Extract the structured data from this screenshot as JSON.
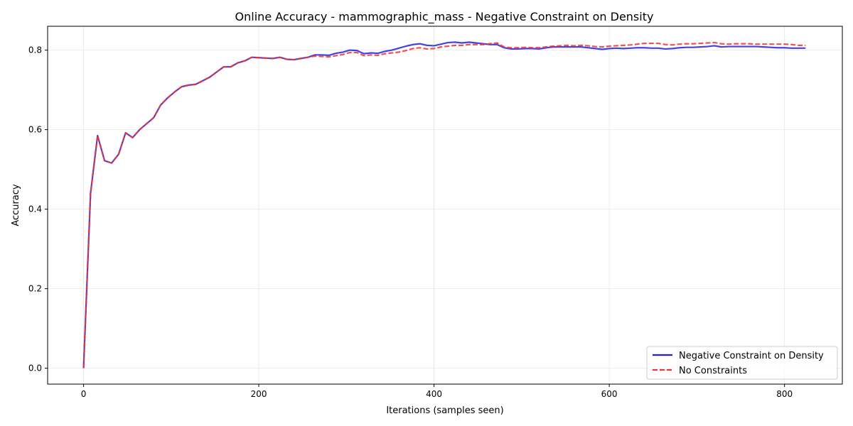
{
  "chart_data": {
    "type": "line",
    "title": "Online Accuracy - mammographic_mass - Negative Constraint on Density",
    "xlabel": "Iterations (samples seen)",
    "ylabel": "Accuracy",
    "xlim": [
      -41,
      866
    ],
    "ylim": [
      -0.04,
      0.86
    ],
    "xticks": [
      0,
      200,
      400,
      600,
      800
    ],
    "xtick_labels": [
      "0",
      "200",
      "400",
      "600",
      "800"
    ],
    "yticks": [
      0.0,
      0.2,
      0.4,
      0.6,
      0.8
    ],
    "ytick_labels": [
      "0.0",
      "0.2",
      "0.4",
      "0.6",
      "0.8"
    ],
    "grid": true,
    "legend_position": "bottom-right",
    "x": [
      0,
      8,
      16,
      24,
      32,
      40,
      48,
      56,
      64,
      72,
      80,
      88,
      96,
      104,
      112,
      120,
      128,
      136,
      144,
      152,
      160,
      168,
      176,
      184,
      192,
      200,
      208,
      216,
      224,
      232,
      240,
      248,
      256,
      264,
      272,
      280,
      288,
      296,
      304,
      312,
      320,
      328,
      336,
      344,
      352,
      360,
      368,
      376,
      384,
      392,
      400,
      408,
      416,
      424,
      432,
      440,
      448,
      456,
      464,
      472,
      480,
      488,
      496,
      504,
      512,
      520,
      528,
      536,
      544,
      552,
      560,
      568,
      576,
      584,
      592,
      600,
      608,
      616,
      624,
      632,
      640,
      648,
      656,
      664,
      672,
      680,
      688,
      696,
      704,
      712,
      720,
      728,
      736,
      744,
      752,
      760,
      768,
      776,
      784,
      792,
      800,
      808,
      816,
      824
    ],
    "series": [
      {
        "name": "Negative Constraint on Density",
        "color": "#2222dd",
        "style": "solid",
        "values": [
          0.0,
          0.44,
          0.585,
          0.522,
          0.516,
          0.538,
          0.592,
          0.58,
          0.6,
          0.615,
          0.63,
          0.662,
          0.68,
          0.695,
          0.708,
          0.712,
          0.714,
          0.723,
          0.732,
          0.745,
          0.758,
          0.758,
          0.768,
          0.773,
          0.782,
          0.781,
          0.78,
          0.779,
          0.782,
          0.777,
          0.776,
          0.779,
          0.782,
          0.788,
          0.788,
          0.787,
          0.792,
          0.795,
          0.8,
          0.799,
          0.791,
          0.793,
          0.792,
          0.797,
          0.8,
          0.805,
          0.81,
          0.814,
          0.816,
          0.812,
          0.811,
          0.815,
          0.819,
          0.82,
          0.818,
          0.82,
          0.818,
          0.816,
          0.814,
          0.814,
          0.806,
          0.803,
          0.803,
          0.804,
          0.804,
          0.803,
          0.806,
          0.808,
          0.808,
          0.808,
          0.808,
          0.808,
          0.806,
          0.804,
          0.802,
          0.804,
          0.805,
          0.804,
          0.805,
          0.806,
          0.806,
          0.805,
          0.805,
          0.803,
          0.804,
          0.806,
          0.807,
          0.807,
          0.808,
          0.809,
          0.811,
          0.808,
          0.809,
          0.809,
          0.809,
          0.809,
          0.809,
          0.808,
          0.807,
          0.806,
          0.806,
          0.805,
          0.805,
          0.805
        ]
      },
      {
        "name": "No Constraints",
        "color": "#ee3333",
        "style": "dashed",
        "values": [
          0.0,
          0.44,
          0.585,
          0.522,
          0.516,
          0.538,
          0.592,
          0.58,
          0.6,
          0.615,
          0.63,
          0.662,
          0.68,
          0.695,
          0.708,
          0.712,
          0.714,
          0.723,
          0.732,
          0.745,
          0.758,
          0.758,
          0.768,
          0.773,
          0.782,
          0.781,
          0.78,
          0.779,
          0.782,
          0.777,
          0.776,
          0.779,
          0.782,
          0.785,
          0.784,
          0.783,
          0.786,
          0.789,
          0.794,
          0.794,
          0.786,
          0.788,
          0.787,
          0.791,
          0.793,
          0.795,
          0.799,
          0.804,
          0.806,
          0.803,
          0.804,
          0.808,
          0.81,
          0.812,
          0.812,
          0.814,
          0.814,
          0.814,
          0.816,
          0.818,
          0.808,
          0.806,
          0.806,
          0.807,
          0.806,
          0.806,
          0.808,
          0.81,
          0.811,
          0.812,
          0.811,
          0.812,
          0.811,
          0.809,
          0.808,
          0.81,
          0.811,
          0.812,
          0.813,
          0.815,
          0.817,
          0.817,
          0.817,
          0.814,
          0.813,
          0.815,
          0.816,
          0.816,
          0.817,
          0.818,
          0.819,
          0.816,
          0.815,
          0.816,
          0.816,
          0.816,
          0.815,
          0.815,
          0.815,
          0.815,
          0.815,
          0.814,
          0.812,
          0.812
        ]
      }
    ]
  }
}
